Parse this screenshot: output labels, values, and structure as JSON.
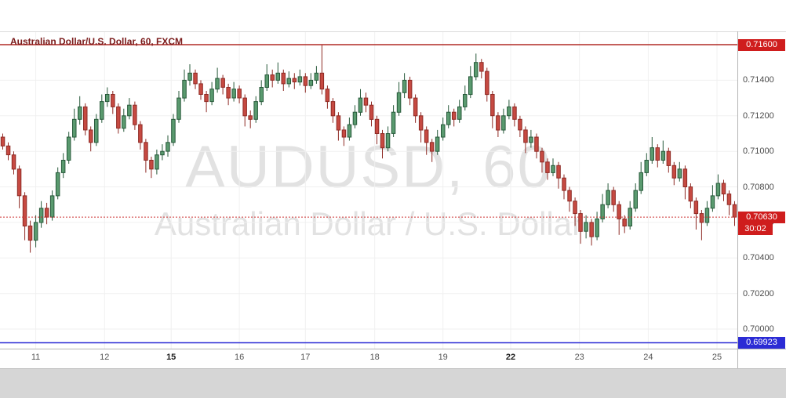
{
  "legend": {
    "title": "Australian Dollar/U.S. Dollar, 60, FXCM"
  },
  "watermark": {
    "line1": "AUDUSD, 60",
    "line2": "Australian Dollar / U.S. Dollar"
  },
  "price_axis": {
    "ticks": [
      {
        "label": "0.71400",
        "value": 0.714
      },
      {
        "label": "0.71200",
        "value": 0.712
      },
      {
        "label": "0.71000",
        "value": 0.71
      },
      {
        "label": "0.70800",
        "value": 0.708
      },
      {
        "label": "0.70600",
        "value": 0.706
      },
      {
        "label": "0.70400",
        "value": 0.704
      },
      {
        "label": "0.70200",
        "value": 0.702
      },
      {
        "label": "0.70000",
        "value": 0.7
      }
    ]
  },
  "time_axis": {
    "ticks": [
      {
        "label": "11",
        "i": 6,
        "bold": false
      },
      {
        "label": "12",
        "i": 18.5,
        "bold": false
      },
      {
        "label": "15",
        "i": 30.6,
        "bold": true
      },
      {
        "label": "16",
        "i": 43,
        "bold": false
      },
      {
        "label": "17",
        "i": 55,
        "bold": false
      },
      {
        "label": "18",
        "i": 67.6,
        "bold": false
      },
      {
        "label": "19",
        "i": 80,
        "bold": false
      },
      {
        "label": "22",
        "i": 92.3,
        "bold": true
      },
      {
        "label": "23",
        "i": 104.8,
        "bold": false
      },
      {
        "label": "24",
        "i": 117.3,
        "bold": false
      },
      {
        "label": "25",
        "i": 129.8,
        "bold": false
      }
    ]
  },
  "levels": {
    "resistance": {
      "label": "0.71600",
      "value": 0.716
    },
    "last": {
      "label": "0.70630",
      "value": 0.7063,
      "countdown": "30:02"
    },
    "support": {
      "label": "0.69923",
      "value": 0.69923
    }
  },
  "chart_data": {
    "type": "candlestick",
    "symbol": "AUDUSD",
    "interval": "60",
    "provider": "FXCM",
    "title": "Australian Dollar/U.S. Dollar, 60, FXCM",
    "ylim": [
      0.6989,
      0.71675
    ],
    "grid": true,
    "x_day_labels": [
      "11",
      "12",
      "15",
      "16",
      "17",
      "18",
      "19",
      "22",
      "23",
      "24",
      "25"
    ],
    "levels": {
      "resistance": 0.716,
      "last_price": 0.7063,
      "support": 0.69923,
      "bar_countdown": "30:02"
    },
    "candles_ohlc": [
      [
        0.7108,
        0.711,
        0.7101,
        0.7103
      ],
      [
        0.7103,
        0.7105,
        0.7095,
        0.7098
      ],
      [
        0.7098,
        0.71,
        0.7087,
        0.709
      ],
      [
        0.709,
        0.7092,
        0.7068,
        0.7075
      ],
      [
        0.7075,
        0.7077,
        0.705,
        0.7058
      ],
      [
        0.7058,
        0.7061,
        0.7043,
        0.705
      ],
      [
        0.705,
        0.7064,
        0.7046,
        0.706
      ],
      [
        0.706,
        0.7072,
        0.7057,
        0.7068
      ],
      [
        0.7068,
        0.7071,
        0.7059,
        0.7063
      ],
      [
        0.7063,
        0.7078,
        0.7061,
        0.7075
      ],
      [
        0.7075,
        0.7091,
        0.7073,
        0.7088
      ],
      [
        0.7088,
        0.7099,
        0.7085,
        0.7095
      ],
      [
        0.7095,
        0.7111,
        0.7093,
        0.7108
      ],
      [
        0.7108,
        0.7124,
        0.7106,
        0.7118
      ],
      [
        0.7118,
        0.7131,
        0.7115,
        0.7125
      ],
      [
        0.7125,
        0.7127,
        0.7109,
        0.7112
      ],
      [
        0.7112,
        0.7114,
        0.71,
        0.7105
      ],
      [
        0.7105,
        0.7121,
        0.7103,
        0.7118
      ],
      [
        0.7118,
        0.7132,
        0.7116,
        0.7128
      ],
      [
        0.7128,
        0.7136,
        0.7125,
        0.7132
      ],
      [
        0.7132,
        0.7134,
        0.7121,
        0.7125
      ],
      [
        0.7125,
        0.7127,
        0.711,
        0.7113
      ],
      [
        0.7113,
        0.7124,
        0.7111,
        0.712
      ],
      [
        0.712,
        0.713,
        0.7118,
        0.7126
      ],
      [
        0.7126,
        0.7128,
        0.7112,
        0.7115
      ],
      [
        0.7115,
        0.7117,
        0.7101,
        0.7105
      ],
      [
        0.7105,
        0.7107,
        0.7088,
        0.7095
      ],
      [
        0.7095,
        0.7097,
        0.7085,
        0.709
      ],
      [
        0.709,
        0.7101,
        0.7087,
        0.7098
      ],
      [
        0.7098,
        0.7104,
        0.7095,
        0.71
      ],
      [
        0.71,
        0.7109,
        0.7097,
        0.7105
      ],
      [
        0.7105,
        0.7121,
        0.7103,
        0.7118
      ],
      [
        0.7118,
        0.7134,
        0.7116,
        0.713
      ],
      [
        0.713,
        0.7146,
        0.7128,
        0.714
      ],
      [
        0.714,
        0.7149,
        0.7137,
        0.7144
      ],
      [
        0.7144,
        0.7146,
        0.7135,
        0.7138
      ],
      [
        0.7138,
        0.714,
        0.7129,
        0.7132
      ],
      [
        0.7132,
        0.7134,
        0.7122,
        0.7128
      ],
      [
        0.7128,
        0.7139,
        0.7126,
        0.7135
      ],
      [
        0.7135,
        0.7147,
        0.7133,
        0.7141
      ],
      [
        0.7141,
        0.7143,
        0.7132,
        0.7136
      ],
      [
        0.7136,
        0.7138,
        0.7126,
        0.713
      ],
      [
        0.713,
        0.7139,
        0.7128,
        0.7135
      ],
      [
        0.7135,
        0.7137,
        0.7127,
        0.713
      ],
      [
        0.713,
        0.7132,
        0.7114,
        0.712
      ],
      [
        0.712,
        0.7123,
        0.7113,
        0.7118
      ],
      [
        0.7118,
        0.7131,
        0.7116,
        0.7128
      ],
      [
        0.7128,
        0.714,
        0.7126,
        0.7136
      ],
      [
        0.7136,
        0.7149,
        0.7134,
        0.7143
      ],
      [
        0.7143,
        0.7146,
        0.7136,
        0.714
      ],
      [
        0.714,
        0.715,
        0.7138,
        0.7144
      ],
      [
        0.7144,
        0.7146,
        0.7134,
        0.7138
      ],
      [
        0.7138,
        0.7145,
        0.7136,
        0.7141
      ],
      [
        0.7141,
        0.7144,
        0.7135,
        0.7139
      ],
      [
        0.7139,
        0.7146,
        0.7137,
        0.7142
      ],
      [
        0.7142,
        0.7144,
        0.7133,
        0.7137
      ],
      [
        0.7137,
        0.7144,
        0.7135,
        0.714
      ],
      [
        0.714,
        0.7148,
        0.7138,
        0.7144
      ],
      [
        0.7144,
        0.716,
        0.7132,
        0.7135
      ],
      [
        0.7135,
        0.7137,
        0.7124,
        0.7128
      ],
      [
        0.7128,
        0.713,
        0.7116,
        0.712
      ],
      [
        0.712,
        0.7122,
        0.7106,
        0.7112
      ],
      [
        0.7112,
        0.7114,
        0.7103,
        0.7108
      ],
      [
        0.7108,
        0.7119,
        0.7106,
        0.7115
      ],
      [
        0.7115,
        0.7126,
        0.7113,
        0.7122
      ],
      [
        0.7122,
        0.7135,
        0.712,
        0.713
      ],
      [
        0.713,
        0.7133,
        0.7122,
        0.7126
      ],
      [
        0.7126,
        0.7128,
        0.7114,
        0.7118
      ],
      [
        0.7118,
        0.712,
        0.7104,
        0.711
      ],
      [
        0.711,
        0.7112,
        0.7096,
        0.7102
      ],
      [
        0.7102,
        0.7114,
        0.71,
        0.711
      ],
      [
        0.711,
        0.7126,
        0.7108,
        0.7122
      ],
      [
        0.7122,
        0.7139,
        0.712,
        0.7133
      ],
      [
        0.7133,
        0.7144,
        0.713,
        0.714
      ],
      [
        0.714,
        0.7142,
        0.7126,
        0.713
      ],
      [
        0.713,
        0.7132,
        0.7116,
        0.712
      ],
      [
        0.712,
        0.7122,
        0.7105,
        0.7112
      ],
      [
        0.7112,
        0.7114,
        0.7098,
        0.7105
      ],
      [
        0.7105,
        0.7107,
        0.7094,
        0.71
      ],
      [
        0.71,
        0.7112,
        0.7098,
        0.7108
      ],
      [
        0.7108,
        0.7119,
        0.7106,
        0.7115
      ],
      [
        0.7115,
        0.7126,
        0.7113,
        0.7122
      ],
      [
        0.7122,
        0.7124,
        0.7114,
        0.7118
      ],
      [
        0.7118,
        0.7129,
        0.7116,
        0.7125
      ],
      [
        0.7125,
        0.7137,
        0.7123,
        0.7132
      ],
      [
        0.7132,
        0.7148,
        0.713,
        0.7142
      ],
      [
        0.7142,
        0.7155,
        0.714,
        0.715
      ],
      [
        0.715,
        0.7152,
        0.7141,
        0.7145
      ],
      [
        0.7145,
        0.7147,
        0.7128,
        0.7132
      ],
      [
        0.7132,
        0.7134,
        0.7113,
        0.712
      ],
      [
        0.712,
        0.7122,
        0.7108,
        0.7112
      ],
      [
        0.7112,
        0.7124,
        0.711,
        0.712
      ],
      [
        0.712,
        0.7129,
        0.7118,
        0.7125
      ],
      [
        0.7125,
        0.7127,
        0.7114,
        0.7118
      ],
      [
        0.7118,
        0.712,
        0.7108,
        0.7112
      ],
      [
        0.7112,
        0.7114,
        0.7099,
        0.7105
      ],
      [
        0.7105,
        0.7112,
        0.7102,
        0.7108
      ],
      [
        0.7108,
        0.711,
        0.7096,
        0.71
      ],
      [
        0.71,
        0.7102,
        0.7088,
        0.7094
      ],
      [
        0.7094,
        0.7096,
        0.7084,
        0.7088
      ],
      [
        0.7088,
        0.7096,
        0.7086,
        0.7092
      ],
      [
        0.7092,
        0.7094,
        0.7079,
        0.7085
      ],
      [
        0.7085,
        0.7087,
        0.7073,
        0.7078
      ],
      [
        0.7078,
        0.708,
        0.7066,
        0.7072
      ],
      [
        0.7072,
        0.7074,
        0.7058,
        0.7065
      ],
      [
        0.7065,
        0.7067,
        0.7048,
        0.7055
      ],
      [
        0.7055,
        0.7064,
        0.7051,
        0.706
      ],
      [
        0.706,
        0.7062,
        0.7047,
        0.7052
      ],
      [
        0.7052,
        0.7066,
        0.705,
        0.7062
      ],
      [
        0.7062,
        0.7076,
        0.706,
        0.707
      ],
      [
        0.707,
        0.7082,
        0.7068,
        0.7078
      ],
      [
        0.7078,
        0.708,
        0.7066,
        0.707
      ],
      [
        0.707,
        0.7072,
        0.7053,
        0.7062
      ],
      [
        0.7062,
        0.7064,
        0.7054,
        0.7058
      ],
      [
        0.7058,
        0.7072,
        0.7056,
        0.7068
      ],
      [
        0.7068,
        0.7082,
        0.7066,
        0.7078
      ],
      [
        0.7078,
        0.7094,
        0.7076,
        0.7088
      ],
      [
        0.7088,
        0.7099,
        0.7086,
        0.7095
      ],
      [
        0.7095,
        0.7108,
        0.7093,
        0.7102
      ],
      [
        0.7102,
        0.7104,
        0.7091,
        0.7095
      ],
      [
        0.7095,
        0.7106,
        0.7093,
        0.71
      ],
      [
        0.71,
        0.7102,
        0.7088,
        0.7092
      ],
      [
        0.7092,
        0.7094,
        0.7081,
        0.7085
      ],
      [
        0.7085,
        0.7094,
        0.7083,
        0.709
      ],
      [
        0.709,
        0.7092,
        0.7073,
        0.708
      ],
      [
        0.708,
        0.7082,
        0.7068,
        0.7072
      ],
      [
        0.7072,
        0.7074,
        0.7056,
        0.7065
      ],
      [
        0.7065,
        0.7067,
        0.705,
        0.706
      ],
      [
        0.706,
        0.7072,
        0.7058,
        0.7068
      ],
      [
        0.7068,
        0.7081,
        0.7066,
        0.7075
      ],
      [
        0.7075,
        0.7087,
        0.7073,
        0.7082
      ],
      [
        0.7082,
        0.7084,
        0.7072,
        0.7076
      ],
      [
        0.7076,
        0.7078,
        0.7064,
        0.707
      ],
      [
        0.707,
        0.7072,
        0.7058,
        0.7063
      ]
    ]
  },
  "colors": {
    "up_fill": "#5a9a6f",
    "up_border": "#27593a",
    "down_fill": "#c64a42",
    "down_border": "#8e2a24",
    "grid": "#f0f0f0",
    "resistance": "#b02a25",
    "support": "#2b2bd5",
    "last": "#cc3333",
    "badge_red": "#cf1d1d",
    "badge_blue": "#2b2bd5",
    "watermark": "#e2e2e2",
    "legend_text": "#7a1b1b",
    "axis_text": "#4a4a4a"
  }
}
